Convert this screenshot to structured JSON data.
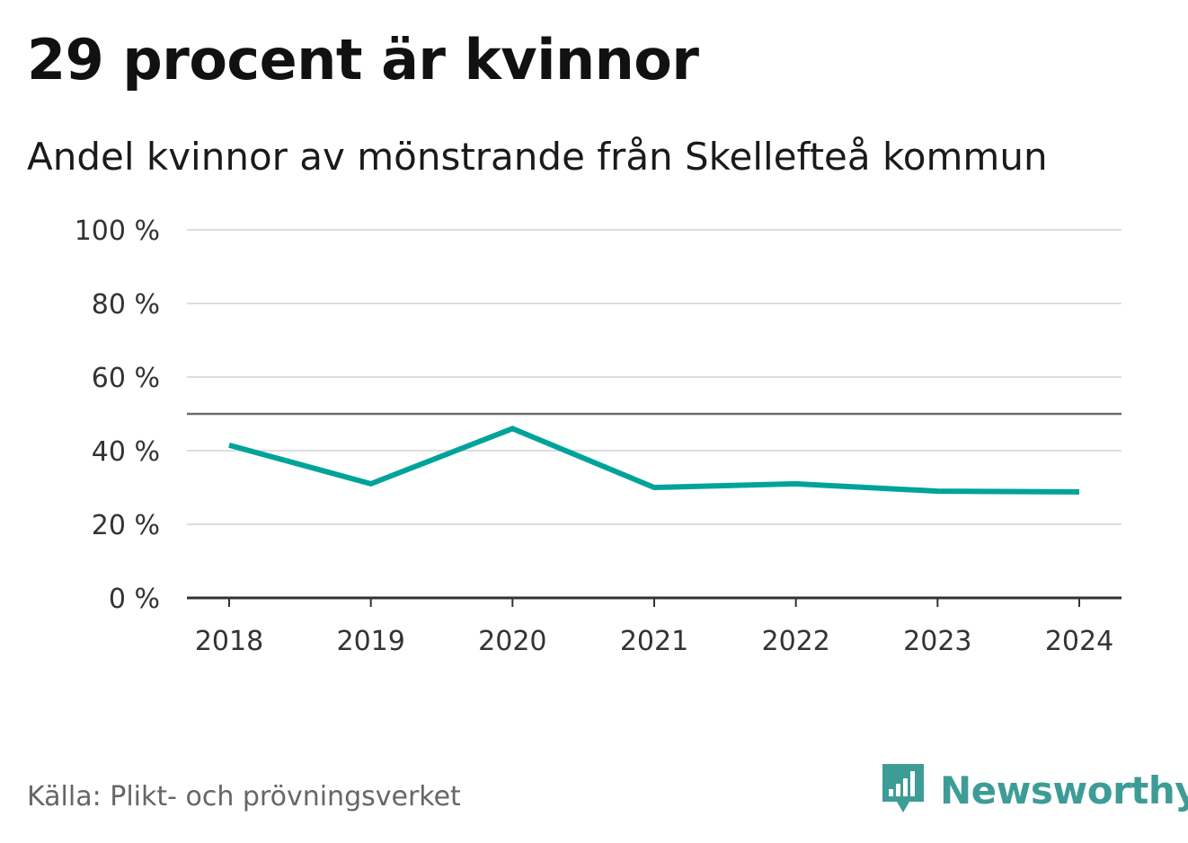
{
  "title": "29 procent är kvinnor",
  "subtitle": "Andel kvinnor av mönstrande från Skellefteå kommun",
  "source": "Källa: Plikt- och prövningsverket",
  "brand": {
    "name": "Newsworthy",
    "icon": "newsworthy-logo-icon",
    "color": "#3d9c96"
  },
  "chart_data": {
    "type": "line",
    "title": "29 procent är kvinnor",
    "subtitle": "Andel kvinnor av mönstrande från Skellefteå kommun",
    "xlabel": "",
    "ylabel": "",
    "categories": [
      "2018",
      "2019",
      "2020",
      "2021",
      "2022",
      "2023",
      "2024"
    ],
    "series": [
      {
        "name": "Andel kvinnor",
        "values": [
          41.5,
          31,
          46,
          30,
          31,
          29,
          28.8
        ],
        "color": "#00a39a"
      }
    ],
    "ylim": [
      0,
      100
    ],
    "yticks": [
      0,
      20,
      40,
      60,
      80,
      100
    ],
    "ytick_labels": [
      "0 %",
      "20 %",
      "40 %",
      "60 %",
      "80 %",
      "100 %"
    ],
    "reference_line": 50,
    "grid": true,
    "legend": "none"
  }
}
